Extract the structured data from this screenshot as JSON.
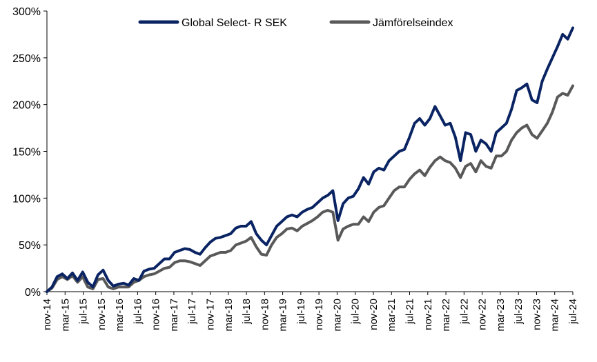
{
  "chart_data": {
    "type": "line",
    "title": "",
    "xlabel": "",
    "ylabel": "",
    "ylim": [
      0,
      300
    ],
    "y_ticks": [
      0,
      50,
      100,
      150,
      200,
      250,
      300
    ],
    "y_tick_labels": [
      "0%",
      "50%",
      "100%",
      "150%",
      "200%",
      "250%",
      "300%"
    ],
    "x_ticks": [
      "nov-14",
      "mar-15",
      "jul-15",
      "nov-15",
      "mar-16",
      "jul-16",
      "nov-16",
      "mar-17",
      "jul-17",
      "nov-17",
      "mar-18",
      "jul-18",
      "nov-18",
      "mar-19",
      "jul-19",
      "nov-19",
      "mar-20",
      "jul-20",
      "nov-20",
      "mar-21",
      "jul-21",
      "nov-21",
      "mar-22",
      "jul-22",
      "nov-22",
      "mar-23",
      "jul-23",
      "nov-23",
      "mar-24",
      "jul-24"
    ],
    "grid": false,
    "legend_position": "top-center",
    "series": [
      {
        "name": "Global Select- R SEK",
        "color": "#0a2463",
        "values": [
          0,
          5,
          16,
          19,
          14,
          20,
          12,
          21,
          10,
          5,
          18,
          23,
          12,
          6,
          8,
          9,
          7,
          14,
          12,
          22,
          24,
          25,
          30,
          35,
          35,
          42,
          44,
          46,
          45,
          42,
          40,
          47,
          53,
          57,
          58,
          60,
          62,
          68,
          70,
          70,
          75,
          62,
          55,
          50,
          60,
          70,
          75,
          80,
          82,
          80,
          85,
          88,
          90,
          95,
          100,
          103,
          108,
          76,
          94,
          100,
          102,
          110,
          122,
          115,
          128,
          132,
          130,
          140,
          145,
          150,
          152,
          165,
          180,
          185,
          178,
          185,
          198,
          188,
          178,
          180,
          165,
          140,
          170,
          168,
          150,
          162,
          158,
          150,
          170,
          175,
          180,
          195,
          215,
          218,
          222,
          205,
          202,
          225,
          238,
          250,
          262,
          275,
          270,
          282
        ]
      },
      {
        "name": "Jämförelseindex",
        "color": "#595959",
        "values": [
          0,
          4,
          13,
          16,
          13,
          17,
          10,
          16,
          5,
          3,
          13,
          14,
          5,
          3,
          5,
          5,
          5,
          10,
          12,
          16,
          18,
          19,
          22,
          25,
          26,
          31,
          33,
          33,
          32,
          30,
          28,
          33,
          38,
          40,
          42,
          42,
          44,
          50,
          52,
          54,
          58,
          48,
          40,
          39,
          50,
          58,
          62,
          67,
          68,
          65,
          70,
          73,
          76,
          80,
          85,
          87,
          85,
          55,
          67,
          70,
          72,
          72,
          80,
          75,
          85,
          90,
          92,
          100,
          108,
          112,
          112,
          120,
          126,
          130,
          124,
          133,
          140,
          144,
          140,
          138,
          132,
          122,
          134,
          137,
          128,
          140,
          134,
          132,
          145,
          145,
          150,
          162,
          170,
          175,
          178,
          168,
          164,
          172,
          180,
          192,
          208,
          212,
          210,
          220
        ]
      }
    ]
  }
}
